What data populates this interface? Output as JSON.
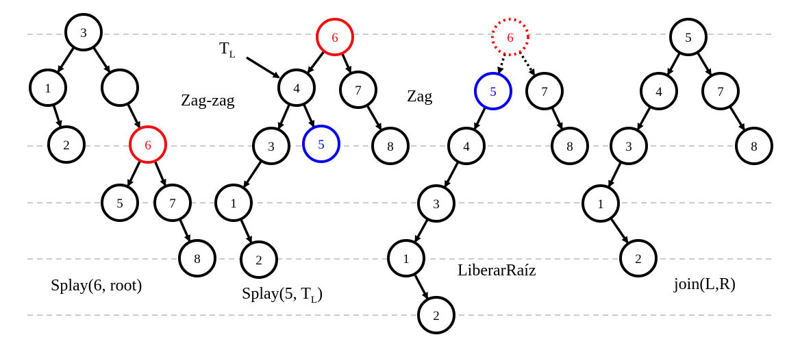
{
  "colors": {
    "default": "#000000",
    "highlight_red": "#ee1111",
    "highlight_blue": "#0000ee",
    "guide": "#bbbbbb"
  },
  "captions": {
    "splay_root": "Splay(6, root)",
    "splay_tl_prefix": "Splay(5, T",
    "splay_tl_sub": "L",
    "splay_tl_suffix": ")",
    "zagzag": "Zag-zag",
    "zag": "Zag",
    "liberar": "LiberarRaíz",
    "join": "join(L,R)",
    "tl_pointer": "T",
    "tl_pointer_sub": "L"
  },
  "trees": [
    {
      "id": "splay-root",
      "nodes": [
        {
          "id": "t1-3",
          "label": "3",
          "color": "default"
        },
        {
          "id": "t1-1",
          "label": "1",
          "color": "default"
        },
        {
          "id": "t1-empty",
          "label": "",
          "color": "default"
        },
        {
          "id": "t1-2",
          "label": "2",
          "color": "default"
        },
        {
          "id": "t1-6",
          "label": "6",
          "color": "highlight_red"
        },
        {
          "id": "t1-5",
          "label": "5",
          "color": "default"
        },
        {
          "id": "t1-7",
          "label": "7",
          "color": "default"
        },
        {
          "id": "t1-8",
          "label": "8",
          "color": "default"
        }
      ],
      "edges": [
        [
          "t1-3",
          "t1-1"
        ],
        [
          "t1-3",
          "t1-empty"
        ],
        [
          "t1-1",
          "t1-2"
        ],
        [
          "t1-empty",
          "t1-6"
        ],
        [
          "t1-6",
          "t1-5"
        ],
        [
          "t1-6",
          "t1-7"
        ],
        [
          "t1-7",
          "t1-8"
        ]
      ]
    },
    {
      "id": "zag-zag-result",
      "nodes": [
        {
          "id": "t2-6",
          "label": "6",
          "color": "highlight_red"
        },
        {
          "id": "t2-4",
          "label": "4",
          "color": "default"
        },
        {
          "id": "t2-7",
          "label": "7",
          "color": "default"
        },
        {
          "id": "t2-3",
          "label": "3",
          "color": "default"
        },
        {
          "id": "t2-5",
          "label": "5",
          "color": "highlight_blue"
        },
        {
          "id": "t2-8",
          "label": "8",
          "color": "default"
        },
        {
          "id": "t2-1",
          "label": "1",
          "color": "default"
        },
        {
          "id": "t2-2",
          "label": "2",
          "color": "default"
        }
      ],
      "edges": [
        [
          "t2-6",
          "t2-4"
        ],
        [
          "t2-6",
          "t2-7"
        ],
        [
          "t2-4",
          "t2-3"
        ],
        [
          "t2-4",
          "t2-5"
        ],
        [
          "t2-7",
          "t2-8"
        ],
        [
          "t2-3",
          "t2-1"
        ],
        [
          "t2-1",
          "t2-2"
        ]
      ]
    },
    {
      "id": "zag-result",
      "nodes": [
        {
          "id": "t3-6",
          "label": "6",
          "color": "highlight_red",
          "dotted": true
        },
        {
          "id": "t3-5",
          "label": "5",
          "color": "highlight_blue"
        },
        {
          "id": "t3-7",
          "label": "7",
          "color": "default"
        },
        {
          "id": "t3-4",
          "label": "4",
          "color": "default"
        },
        {
          "id": "t3-8",
          "label": "8",
          "color": "default"
        },
        {
          "id": "t3-3",
          "label": "3",
          "color": "default"
        },
        {
          "id": "t3-1",
          "label": "1",
          "color": "default"
        },
        {
          "id": "t3-2",
          "label": "2",
          "color": "default"
        }
      ],
      "edges": [
        [
          "t3-6",
          "t3-5",
          "dotted"
        ],
        [
          "t3-6",
          "t3-7",
          "dotted"
        ],
        [
          "t3-5",
          "t3-4"
        ],
        [
          "t3-7",
          "t3-8"
        ],
        [
          "t3-4",
          "t3-3"
        ],
        [
          "t3-3",
          "t3-1"
        ],
        [
          "t3-1",
          "t3-2"
        ]
      ]
    },
    {
      "id": "join-result",
      "nodes": [
        {
          "id": "t4-5",
          "label": "5",
          "color": "default"
        },
        {
          "id": "t4-4",
          "label": "4",
          "color": "default"
        },
        {
          "id": "t4-7",
          "label": "7",
          "color": "default"
        },
        {
          "id": "t4-3",
          "label": "3",
          "color": "default"
        },
        {
          "id": "t4-8",
          "label": "8",
          "color": "default"
        },
        {
          "id": "t4-1",
          "label": "1",
          "color": "default"
        },
        {
          "id": "t4-2",
          "label": "2",
          "color": "default"
        }
      ],
      "edges": [
        [
          "t4-5",
          "t4-4"
        ],
        [
          "t4-5",
          "t4-7"
        ],
        [
          "t4-4",
          "t4-3"
        ],
        [
          "t4-7",
          "t4-8"
        ],
        [
          "t4-3",
          "t4-1"
        ],
        [
          "t4-1",
          "t4-2"
        ]
      ]
    }
  ]
}
